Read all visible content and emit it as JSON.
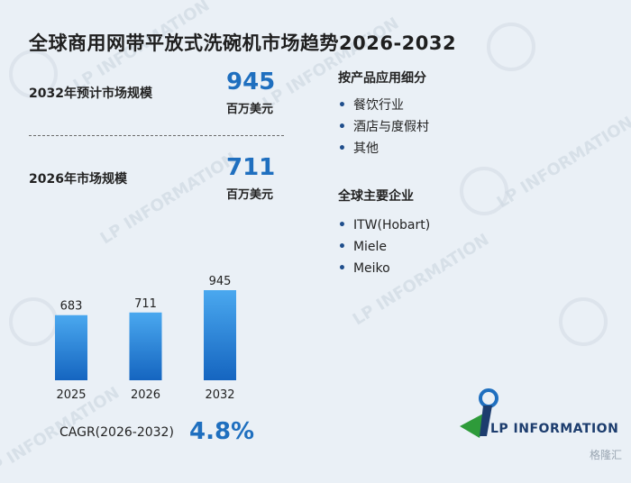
{
  "title": "全球商用网带平放式洗碗机市场趋势2026-2032",
  "stats": {
    "forecast_label": "2032年预计市场规模",
    "forecast_value": "945",
    "forecast_unit": "百万美元",
    "current_label": "2026年市场规模",
    "current_value": "711",
    "current_unit": "百万美元"
  },
  "segments": {
    "title": "按产品应用细分",
    "items": [
      "餐饮行业",
      "酒店与度假村",
      "其他"
    ]
  },
  "companies": {
    "title": "全球主要企业",
    "items": [
      "ITW(Hobart)",
      "Miele",
      "Meiko"
    ]
  },
  "cagr": {
    "label": "CAGR(2026-2032)",
    "value": "4.8%"
  },
  "logo": {
    "text": "LP INFORMATION"
  },
  "footer_watermark": "格隆汇",
  "colors": {
    "accent": "#1f6fbf",
    "bar_top": "#4aa8ef",
    "bar_bottom": "#1565c0"
  },
  "chart_data": {
    "type": "bar",
    "categories": [
      "2025",
      "2026",
      "2032"
    ],
    "values": [
      683,
      711,
      945
    ],
    "data_labels": [
      "683",
      "711",
      "945"
    ],
    "title": "",
    "xlabel": "",
    "ylabel": "",
    "ylim": [
      0,
      945
    ],
    "grid": false,
    "legend": "none"
  }
}
